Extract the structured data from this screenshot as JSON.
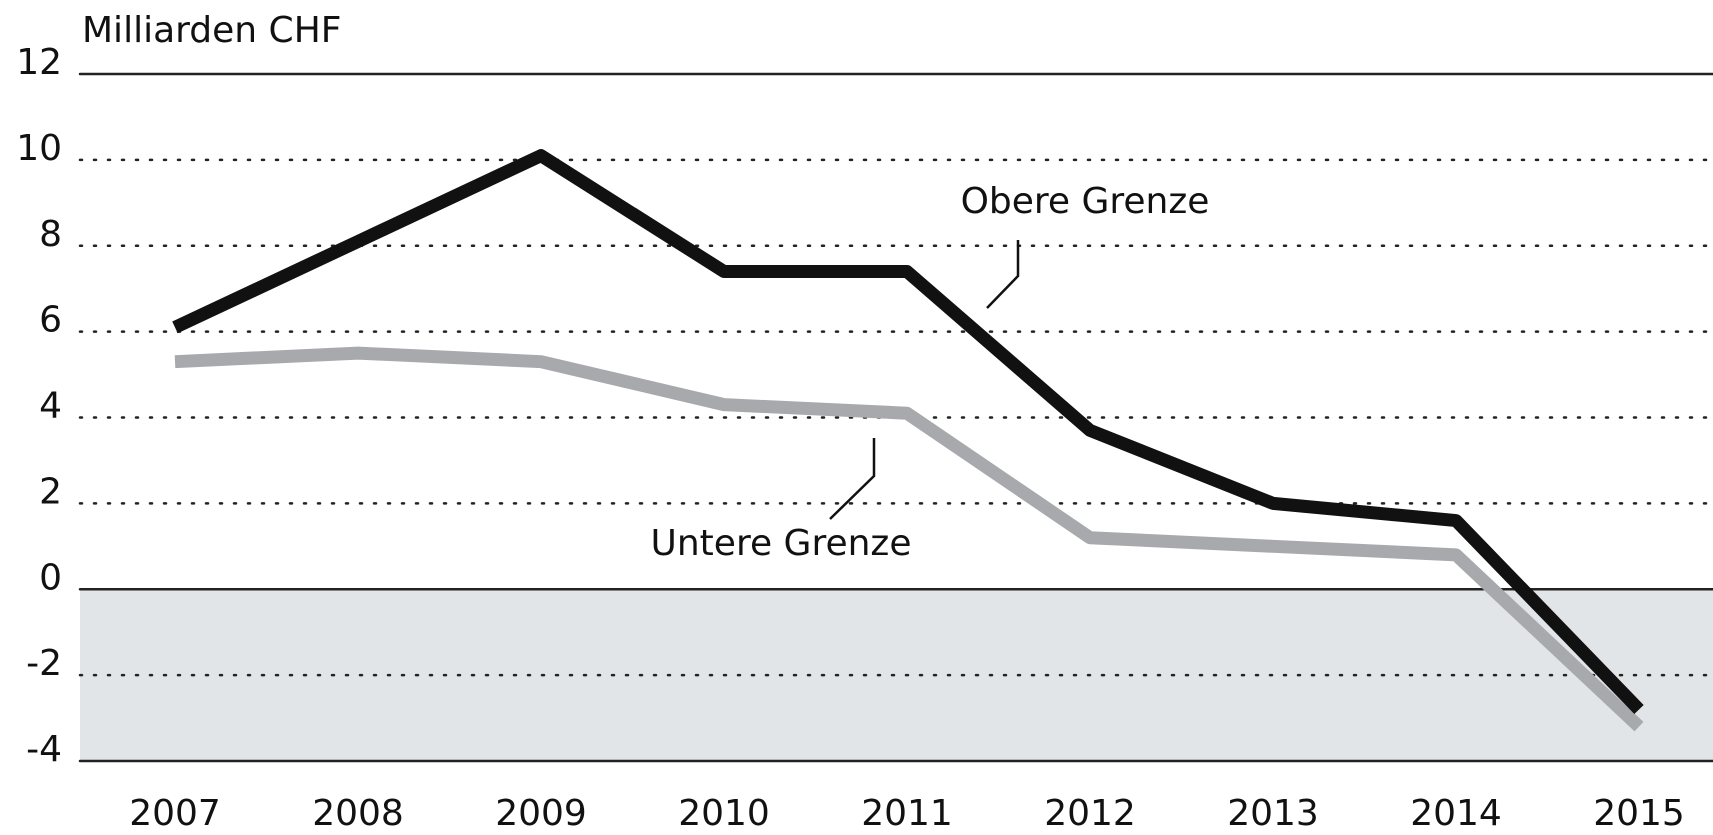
{
  "chart_data": {
    "type": "line",
    "y_axis_label": "Milliarden CHF",
    "categories": [
      "2007",
      "2008",
      "2009",
      "2010",
      "2011",
      "2012",
      "2013",
      "2014",
      "2015"
    ],
    "series": [
      {
        "name": "Obere Grenze",
        "color": "#111111",
        "values": [
          6.1,
          8.1,
          10.1,
          7.4,
          7.4,
          3.7,
          2.0,
          1.6,
          -2.8
        ]
      },
      {
        "name": "Untere Grenze",
        "color": "#a7a9ad",
        "values": [
          5.3,
          5.5,
          5.3,
          4.3,
          4.1,
          1.2,
          1.0,
          0.8,
          -3.2
        ]
      }
    ],
    "ylim": [
      -4,
      12
    ],
    "yticks": [
      -4,
      -2,
      0,
      2,
      4,
      6,
      8,
      10,
      12
    ],
    "grid": true,
    "negative_shade_color": "#e2e5e8"
  }
}
